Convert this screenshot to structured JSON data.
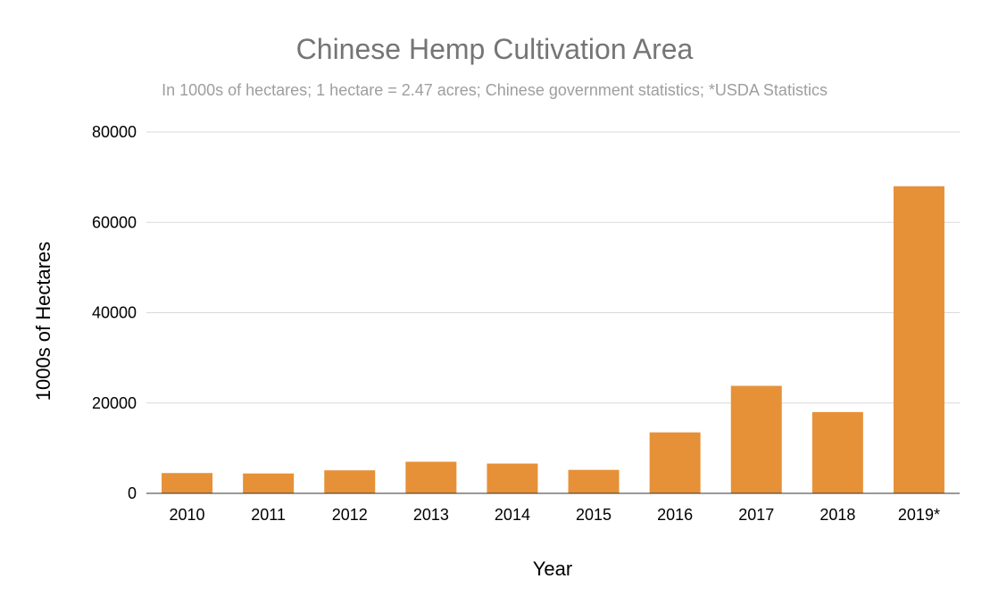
{
  "chart_data": {
    "type": "bar",
    "title": "Chinese Hemp Cultivation Area",
    "subtitle": "In 1000s of hectares; 1 hectare = 2.47 acres; Chinese government statistics; *USDA Statistics",
    "xlabel": "Year",
    "ylabel": "1000s of Hectares",
    "categories": [
      "2010",
      "2011",
      "2012",
      "2013",
      "2014",
      "2015",
      "2016",
      "2017",
      "2018",
      "2019*"
    ],
    "values": [
      4500,
      4400,
      5100,
      7000,
      6600,
      5200,
      13500,
      23800,
      18000,
      68000
    ],
    "ylim": [
      0,
      80000
    ],
    "yticks": [
      "0",
      "20000",
      "40000",
      "60000",
      "80000"
    ],
    "grid": true,
    "legend": "none",
    "bar_color": "#e69138"
  }
}
